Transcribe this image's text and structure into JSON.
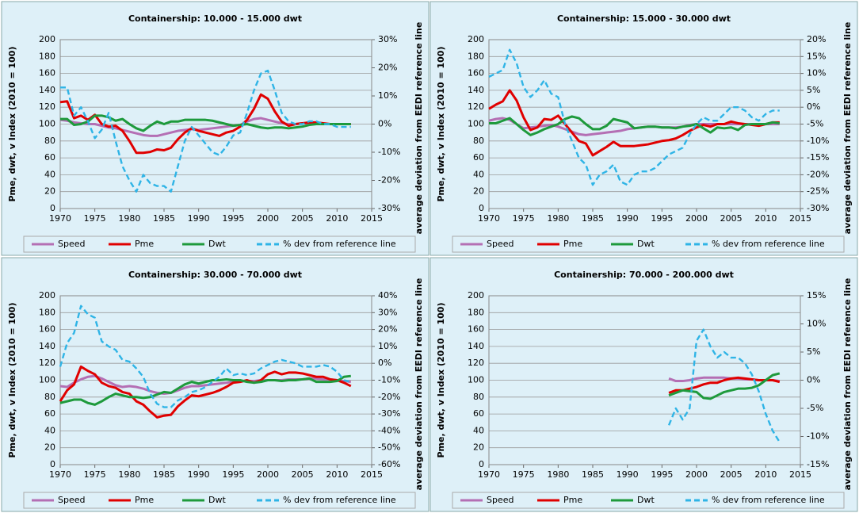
{
  "chart_data": [
    {
      "type": "line",
      "title": "Containership: 10.000 - 15.000 dwt",
      "y_label": "Pme, dwt, v Index (2010 = 100)",
      "y2_label": "average deviation from EEDI reference line",
      "x": [
        1970,
        1971,
        1972,
        1973,
        1974,
        1975,
        1976,
        1977,
        1978,
        1979,
        1980,
        1981,
        1982,
        1983,
        1984,
        1985,
        1986,
        1987,
        1988,
        1989,
        1990,
        1991,
        1992,
        1993,
        1994,
        1995,
        1996,
        1997,
        1998,
        1999,
        2000,
        2001,
        2002,
        2003,
        2004,
        2005,
        2006,
        2007,
        2008,
        2009,
        2010,
        2011,
        2012
      ],
      "xlim": [
        1970,
        2015
      ],
      "xticks": [
        1970,
        1975,
        1980,
        1985,
        1990,
        1995,
        2000,
        2005,
        2010,
        2015
      ],
      "ylim": [
        0,
        200
      ],
      "yticks": [
        0,
        20,
        40,
        60,
        80,
        100,
        120,
        140,
        160,
        180,
        200
      ],
      "y2lim": [
        -30,
        30
      ],
      "y2ticks": [
        {
          "value": -30,
          "label": "-30%"
        },
        {
          "value": -20,
          "label": "-20%"
        },
        {
          "value": -10,
          "label": "-10%"
        },
        {
          "value": 0,
          "label": "0%"
        },
        {
          "value": 10,
          "label": "10%"
        },
        {
          "value": 20,
          "label": "20%"
        },
        {
          "value": 30,
          "label": "30%"
        }
      ],
      "grid": true,
      "series": [
        {
          "name": "Speed",
          "color": "#b46fb4",
          "style": "solid",
          "values": [
            105,
            104,
            102,
            101,
            100,
            100,
            98,
            96,
            95,
            93,
            91,
            89,
            87,
            86,
            86,
            88,
            90,
            92,
            93,
            94,
            93,
            94,
            95,
            96,
            97,
            98,
            99,
            103,
            106,
            107,
            105,
            103,
            101,
            100,
            100,
            101,
            101,
            101,
            100,
            100,
            100,
            100,
            100
          ]
        },
        {
          "name": "Pme",
          "color": "#e00000",
          "style": "solid",
          "values": [
            126,
            127,
            107,
            110,
            105,
            111,
            100,
            97,
            98,
            92,
            80,
            66,
            66,
            67,
            70,
            69,
            72,
            82,
            90,
            95,
            92,
            90,
            88,
            86,
            90,
            92,
            97,
            105,
            118,
            135,
            130,
            115,
            103,
            98,
            100,
            101,
            102,
            102,
            101,
            100,
            100,
            100,
            100
          ]
        },
        {
          "name": "Dwt",
          "color": "#1e9a3c",
          "style": "solid",
          "values": [
            106,
            106,
            99,
            100,
            103,
            110,
            110,
            108,
            104,
            106,
            100,
            95,
            92,
            98,
            103,
            100,
            103,
            103,
            105,
            105,
            105,
            105,
            104,
            102,
            100,
            98,
            99,
            100,
            98,
            96,
            95,
            96,
            96,
            95,
            96,
            97,
            99,
            100,
            100,
            100,
            100,
            100,
            100
          ]
        },
        {
          "name": "% dev from reference line",
          "color": "#2fb4e6",
          "style": "dashed",
          "axis": "y2",
          "values": [
            13,
            13,
            3,
            6,
            1,
            -5,
            -2,
            4,
            -6,
            -15,
            -20,
            -24,
            -18,
            -21,
            -22,
            -22,
            -24,
            -15,
            -6,
            -1,
            -4,
            -7,
            -10,
            -11,
            -8,
            -4,
            -3,
            4,
            12,
            18,
            19,
            12,
            4,
            1,
            0,
            0,
            1,
            1,
            0,
            0,
            -1,
            -1,
            -1
          ]
        }
      ]
    },
    {
      "type": "line",
      "title": "Containership: 15.000 - 30.000 dwt",
      "y_label": "Pme, dwt, v Index (2010 = 100)",
      "y2_label": "average deviation from EEDI reference line",
      "x": [
        1970,
        1971,
        1972,
        1973,
        1974,
        1975,
        1976,
        1977,
        1978,
        1979,
        1980,
        1981,
        1982,
        1983,
        1984,
        1985,
        1986,
        1987,
        1988,
        1989,
        1990,
        1991,
        1992,
        1993,
        1994,
        1995,
        1996,
        1997,
        1998,
        1999,
        2000,
        2001,
        2002,
        2003,
        2004,
        2005,
        2006,
        2007,
        2008,
        2009,
        2010,
        2011,
        2012
      ],
      "xlim": [
        1970,
        2015
      ],
      "xticks": [
        1970,
        1975,
        1980,
        1985,
        1990,
        1995,
        2000,
        2005,
        2010,
        2015
      ],
      "ylim": [
        0,
        200
      ],
      "yticks": [
        0,
        20,
        40,
        60,
        80,
        100,
        120,
        140,
        160,
        180,
        200
      ],
      "y2lim": [
        -30,
        20
      ],
      "y2ticks": [
        {
          "value": -30,
          "label": "-30%"
        },
        {
          "value": -25,
          "label": "-25%"
        },
        {
          "value": -20,
          "label": "-20%"
        },
        {
          "value": -15,
          "label": "-15%"
        },
        {
          "value": -10,
          "label": "-10%"
        },
        {
          "value": -5,
          "label": "-5%"
        },
        {
          "value": 0,
          "label": "0%"
        },
        {
          "value": 5,
          "label": "5%"
        },
        {
          "value": 10,
          "label": "10%"
        },
        {
          "value": 15,
          "label": "15%"
        },
        {
          "value": 20,
          "label": "20%"
        }
      ],
      "grid": true,
      "series": [
        {
          "name": "Speed",
          "color": "#b46fb4",
          "style": "solid",
          "values": [
            104,
            106,
            107,
            105,
            100,
            95,
            96,
            97,
            98,
            99,
            97,
            94,
            91,
            88,
            87,
            88,
            89,
            90,
            91,
            92,
            94,
            95,
            96,
            97,
            97,
            96,
            96,
            96,
            97,
            99,
            100,
            100,
            100,
            100,
            100,
            100,
            100,
            100,
            100,
            100,
            100,
            100,
            100
          ]
        },
        {
          "name": "Pme",
          "color": "#e00000",
          "style": "solid",
          "values": [
            118,
            123,
            127,
            140,
            128,
            108,
            93,
            96,
            106,
            105,
            110,
            100,
            90,
            80,
            77,
            63,
            68,
            73,
            79,
            74,
            74,
            74,
            75,
            76,
            78,
            80,
            81,
            83,
            87,
            92,
            96,
            99,
            97,
            100,
            100,
            103,
            101,
            100,
            99,
            98,
            100,
            102,
            102
          ]
        },
        {
          "name": "Dwt",
          "color": "#1e9a3c",
          "style": "solid",
          "values": [
            101,
            101,
            104,
            107,
            100,
            93,
            87,
            90,
            94,
            97,
            100,
            106,
            109,
            107,
            100,
            94,
            94,
            98,
            106,
            104,
            102,
            95,
            96,
            97,
            97,
            96,
            96,
            95,
            97,
            98,
            100,
            95,
            90,
            96,
            95,
            96,
            93,
            99,
            100,
            100,
            100,
            102,
            101
          ]
        },
        {
          "name": "% dev from reference line",
          "color": "#2fb4e6",
          "style": "dashed",
          "axis": "y2",
          "values": [
            9,
            10,
            11,
            17,
            13,
            6,
            3,
            5,
            8,
            4,
            3,
            -5,
            -10,
            -15,
            -17,
            -23,
            -20,
            -19,
            -17,
            -22,
            -23,
            -20,
            -19,
            -19,
            -18,
            -16,
            -14,
            -13,
            -12,
            -8,
            -5,
            -3,
            -4,
            -4,
            -2,
            0,
            0,
            -1,
            -3,
            -4,
            -2,
            -1,
            -1
          ]
        }
      ]
    },
    {
      "type": "line",
      "title": "Containership: 30.000 - 70.000 dwt",
      "y_label": "Pme, dwt, v Index (2010 = 100)",
      "y2_label": "average deviation from EEDI reference line",
      "x": [
        1970,
        1971,
        1972,
        1973,
        1974,
        1975,
        1976,
        1977,
        1978,
        1979,
        1980,
        1981,
        1982,
        1983,
        1984,
        1985,
        1986,
        1987,
        1988,
        1989,
        1990,
        1991,
        1992,
        1993,
        1994,
        1995,
        1996,
        1997,
        1998,
        1999,
        2000,
        2001,
        2002,
        2003,
        2004,
        2005,
        2006,
        2007,
        2008,
        2009,
        2010,
        2011,
        2012
      ],
      "xlim": [
        1970,
        2015
      ],
      "xticks": [
        1970,
        1975,
        1980,
        1985,
        1990,
        1995,
        2000,
        2005,
        2010,
        2015
      ],
      "ylim": [
        0,
        200
      ],
      "yticks": [
        0,
        20,
        40,
        60,
        80,
        100,
        120,
        140,
        160,
        180,
        200
      ],
      "y2lim": [
        -60,
        40
      ],
      "y2ticks": [
        {
          "value": -60,
          "label": "-60%"
        },
        {
          "value": -50,
          "label": "-50%"
        },
        {
          "value": -40,
          "label": "-40%"
        },
        {
          "value": -30,
          "label": "-30%"
        },
        {
          "value": -20,
          "label": "-20%"
        },
        {
          "value": -10,
          "label": "-10%"
        },
        {
          "value": 0,
          "label": "0%"
        },
        {
          "value": 10,
          "label": "10%"
        },
        {
          "value": 20,
          "label": "20%"
        },
        {
          "value": 30,
          "label": "30%"
        },
        {
          "value": 40,
          "label": "40%"
        }
      ],
      "grid": true,
      "series": [
        {
          "name": "Speed",
          "color": "#b46fb4",
          "style": "solid",
          "values": [
            93,
            92,
            97,
            101,
            104,
            105,
            102,
            98,
            94,
            92,
            93,
            92,
            90,
            87,
            85,
            84,
            85,
            88,
            91,
            93,
            93,
            94,
            95,
            96,
            97,
            98,
            99,
            99,
            99,
            100,
            100,
            100,
            100,
            101,
            101,
            101,
            102,
            102,
            101,
            101,
            100,
            99,
            98
          ]
        },
        {
          "name": "Pme",
          "color": "#e00000",
          "style": "solid",
          "values": [
            75,
            88,
            95,
            116,
            111,
            107,
            97,
            93,
            91,
            86,
            84,
            75,
            71,
            63,
            56,
            58,
            59,
            69,
            76,
            82,
            81,
            83,
            85,
            88,
            92,
            97,
            98,
            100,
            97,
            100,
            107,
            110,
            107,
            109,
            109,
            108,
            106,
            104,
            104,
            101,
            100,
            97,
            93
          ]
        },
        {
          "name": "Dwt",
          "color": "#1e9a3c",
          "style": "solid",
          "values": [
            73,
            75,
            77,
            77,
            73,
            71,
            75,
            80,
            84,
            82,
            80,
            80,
            79,
            80,
            83,
            86,
            85,
            90,
            95,
            98,
            96,
            98,
            100,
            100,
            101,
            100,
            100,
            98,
            97,
            98,
            100,
            100,
            99,
            100,
            100,
            101,
            102,
            98,
            98,
            98,
            99,
            104,
            105
          ]
        },
        {
          "name": "% dev from reference line",
          "color": "#2fb4e6",
          "style": "dashed",
          "axis": "y2",
          "values": [
            -2,
            12,
            18,
            34,
            29,
            27,
            13,
            10,
            8,
            2,
            1,
            -3,
            -8,
            -18,
            -24,
            -26,
            -26,
            -22,
            -20,
            -17,
            -16,
            -14,
            -11,
            -8,
            -3,
            -7,
            -6,
            -7,
            -6,
            -3,
            -1,
            1,
            2,
            1,
            0,
            -2,
            -2,
            -2,
            -1,
            -2,
            -5,
            -10,
            -11
          ]
        }
      ]
    },
    {
      "type": "line",
      "title": "Containership: 70.000 - 200.000 dwt",
      "y_label": "Pme, dwt, v Index (2010 = 100)",
      "y2_label": "average deviation from EEDI reference line",
      "x": [
        1996,
        1997,
        1998,
        1999,
        2000,
        2001,
        2002,
        2003,
        2004,
        2005,
        2006,
        2007,
        2008,
        2009,
        2010,
        2011,
        2012
      ],
      "xlim": [
        1970,
        2015
      ],
      "xticks": [
        1970,
        1975,
        1980,
        1985,
        1990,
        1995,
        2000,
        2005,
        2010,
        2015
      ],
      "ylim": [
        0,
        200
      ],
      "yticks": [
        0,
        20,
        40,
        60,
        80,
        100,
        120,
        140,
        160,
        180,
        200
      ],
      "y2lim": [
        -15,
        15
      ],
      "y2ticks": [
        {
          "value": -15,
          "label": "-15%"
        },
        {
          "value": -10,
          "label": "-10%"
        },
        {
          "value": -5,
          "label": "-5%"
        },
        {
          "value": 0,
          "label": "0%"
        },
        {
          "value": 5,
          "label": "5%"
        },
        {
          "value": 10,
          "label": "10%"
        },
        {
          "value": 15,
          "label": "15%"
        }
      ],
      "grid": true,
      "series": [
        {
          "name": "Speed",
          "color": "#b46fb4",
          "style": "solid",
          "values": [
            102,
            99,
            99,
            100,
            102,
            103,
            103,
            103,
            103,
            102,
            102,
            101,
            101,
            100,
            100,
            100,
            99
          ]
        },
        {
          "name": "Pme",
          "color": "#e00000",
          "style": "solid",
          "values": [
            85,
            88,
            88,
            90,
            92,
            95,
            97,
            97,
            100,
            102,
            103,
            102,
            101,
            100,
            100,
            100,
            98
          ]
        },
        {
          "name": "Dwt",
          "color": "#1e9a3c",
          "style": "solid",
          "values": [
            82,
            85,
            88,
            87,
            86,
            79,
            78,
            82,
            86,
            88,
            90,
            90,
            91,
            94,
            100,
            106,
            108
          ]
        },
        {
          "name": "% dev from reference line",
          "color": "#2fb4e6",
          "style": "dashed",
          "axis": "y2",
          "values": [
            -8,
            -5,
            -7,
            -5,
            7,
            9,
            6,
            4,
            5,
            4,
            4,
            3,
            1,
            -2,
            -6,
            -9,
            -11
          ]
        }
      ]
    }
  ]
}
